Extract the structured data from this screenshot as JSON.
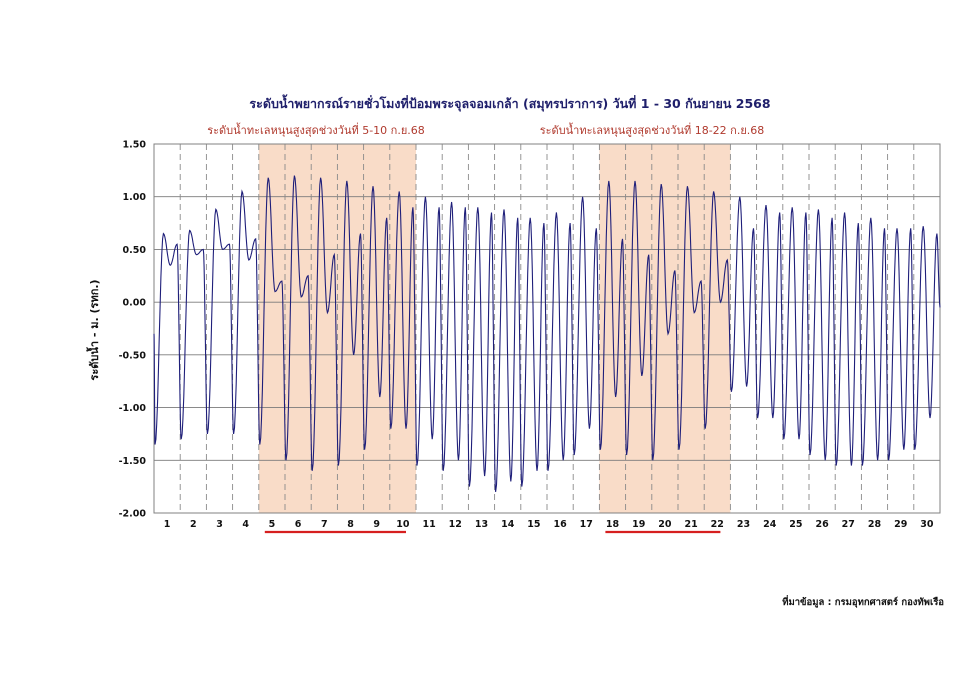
{
  "chart_data": {
    "type": "line",
    "title": "ระดับน้ำพยากรณ์รายชั่วโมงที่ป้อมพระจุลจอมเกล้า (สมุทรปราการ) วันที่ 1 - 30 กันยายน 2568",
    "ylabel": "ระดับน้ำ - ม. (รทก.)",
    "xlabel": "",
    "ylim": [
      -2.0,
      1.5
    ],
    "yticks": [
      "1.50",
      "1.00",
      "0.50",
      "0.00",
      "-0.50",
      "-1.00",
      "-1.50",
      "-2.00"
    ],
    "ytick_values": [
      1.5,
      1.0,
      0.5,
      0.0,
      -0.5,
      -1.0,
      -1.5,
      -2.0
    ],
    "xlim": [
      1,
      31
    ],
    "xticks": [
      "1",
      "2",
      "3",
      "4",
      "5",
      "6",
      "7",
      "8",
      "9",
      "10",
      "11",
      "12",
      "13",
      "14",
      "15",
      "16",
      "17",
      "18",
      "19",
      "20",
      "21",
      "22",
      "23",
      "24",
      "25",
      "26",
      "27",
      "28",
      "29",
      "30"
    ],
    "grid": true,
    "line_color": "#1f1f7a",
    "highlight_color": "#f9dcc8",
    "underline_color": "#d61f1f",
    "highlights": [
      {
        "start_day": 5,
        "end_day": 10,
        "label": "ระดับน้ำทะเลหนุนสูงสุดช่วงวันที่ 5-10 ก.ย.68"
      },
      {
        "start_day": 18,
        "end_day": 22,
        "label": "ระดับน้ำทะเลหนุนสูงสุดช่วงวันที่ 18-22 ก.ย.68"
      }
    ],
    "series": [
      {
        "daily": [
          {
            "day": 1,
            "low1": -1.35,
            "high1": 0.65,
            "low2": 0.35,
            "high2": 0.55
          },
          {
            "day": 2,
            "low1": -1.3,
            "high1": 0.68,
            "low2": 0.45,
            "high2": 0.5
          },
          {
            "day": 3,
            "low1": -1.25,
            "high1": 0.88,
            "low2": 0.5,
            "high2": 0.55
          },
          {
            "day": 4,
            "low1": -1.25,
            "high1": 1.05,
            "low2": 0.4,
            "high2": 0.6
          },
          {
            "day": 5,
            "low1": -1.35,
            "high1": 1.18,
            "low2": 0.1,
            "high2": 0.2
          },
          {
            "day": 6,
            "low1": -1.5,
            "high1": 1.2,
            "low2": 0.05,
            "high2": 0.25
          },
          {
            "day": 7,
            "low1": -1.6,
            "high1": 1.18,
            "low2": -0.1,
            "high2": 0.45
          },
          {
            "day": 8,
            "low1": -1.55,
            "high1": 1.15,
            "low2": -0.5,
            "high2": 0.65
          },
          {
            "day": 9,
            "low1": -1.4,
            "high1": 1.1,
            "low2": -0.9,
            "high2": 0.8
          },
          {
            "day": 10,
            "low1": -1.2,
            "high1": 1.05,
            "low2": -1.2,
            "high2": 0.9
          },
          {
            "day": 11,
            "low1": -1.55,
            "high1": 1.0,
            "low2": -1.3,
            "high2": 0.9
          },
          {
            "day": 12,
            "low1": -1.6,
            "high1": 0.95,
            "low2": -1.5,
            "high2": 0.9
          },
          {
            "day": 13,
            "low1": -1.75,
            "high1": 0.9,
            "low2": -1.65,
            "high2": 0.85
          },
          {
            "day": 14,
            "low1": -1.8,
            "high1": 0.88,
            "low2": -1.7,
            "high2": 0.8
          },
          {
            "day": 15,
            "low1": -1.75,
            "high1": 0.8,
            "low2": -1.6,
            "high2": 0.75
          },
          {
            "day": 16,
            "low1": -1.6,
            "high1": 0.85,
            "low2": -1.5,
            "high2": 0.75
          },
          {
            "day": 17,
            "low1": -1.45,
            "high1": 1.0,
            "low2": -1.2,
            "high2": 0.7
          },
          {
            "day": 18,
            "low1": -1.4,
            "high1": 1.15,
            "low2": -0.9,
            "high2": 0.6
          },
          {
            "day": 19,
            "low1": -1.45,
            "high1": 1.15,
            "low2": -0.7,
            "high2": 0.45
          },
          {
            "day": 20,
            "low1": -1.5,
            "high1": 1.12,
            "low2": -0.3,
            "high2": 0.3
          },
          {
            "day": 21,
            "low1": -1.4,
            "high1": 1.1,
            "low2": -0.1,
            "high2": 0.2
          },
          {
            "day": 22,
            "low1": -1.2,
            "high1": 1.05,
            "low2": 0.0,
            "high2": 0.4
          },
          {
            "day": 23,
            "low1": -0.85,
            "high1": 1.0,
            "low2": -0.8,
            "high2": 0.7
          },
          {
            "day": 24,
            "low1": -1.1,
            "high1": 0.92,
            "low2": -1.1,
            "high2": 0.85
          },
          {
            "day": 25,
            "low1": -1.3,
            "high1": 0.9,
            "low2": -1.3,
            "high2": 0.85
          },
          {
            "day": 26,
            "low1": -1.45,
            "high1": 0.88,
            "low2": -1.5,
            "high2": 0.8
          },
          {
            "day": 27,
            "low1": -1.55,
            "high1": 0.85,
            "low2": -1.55,
            "high2": 0.75
          },
          {
            "day": 28,
            "low1": -1.55,
            "high1": 0.8,
            "low2": -1.5,
            "high2": 0.7
          },
          {
            "day": 29,
            "low1": -1.5,
            "high1": 0.7,
            "low2": -1.4,
            "high2": 0.7
          },
          {
            "day": 30,
            "low1": -1.4,
            "high1": 0.72,
            "low2": -1.1,
            "high2": 0.65
          }
        ]
      }
    ]
  },
  "source_text": "ที่มาข้อมูล : กรมอุทกศาสตร์ กองทัพเรือ"
}
